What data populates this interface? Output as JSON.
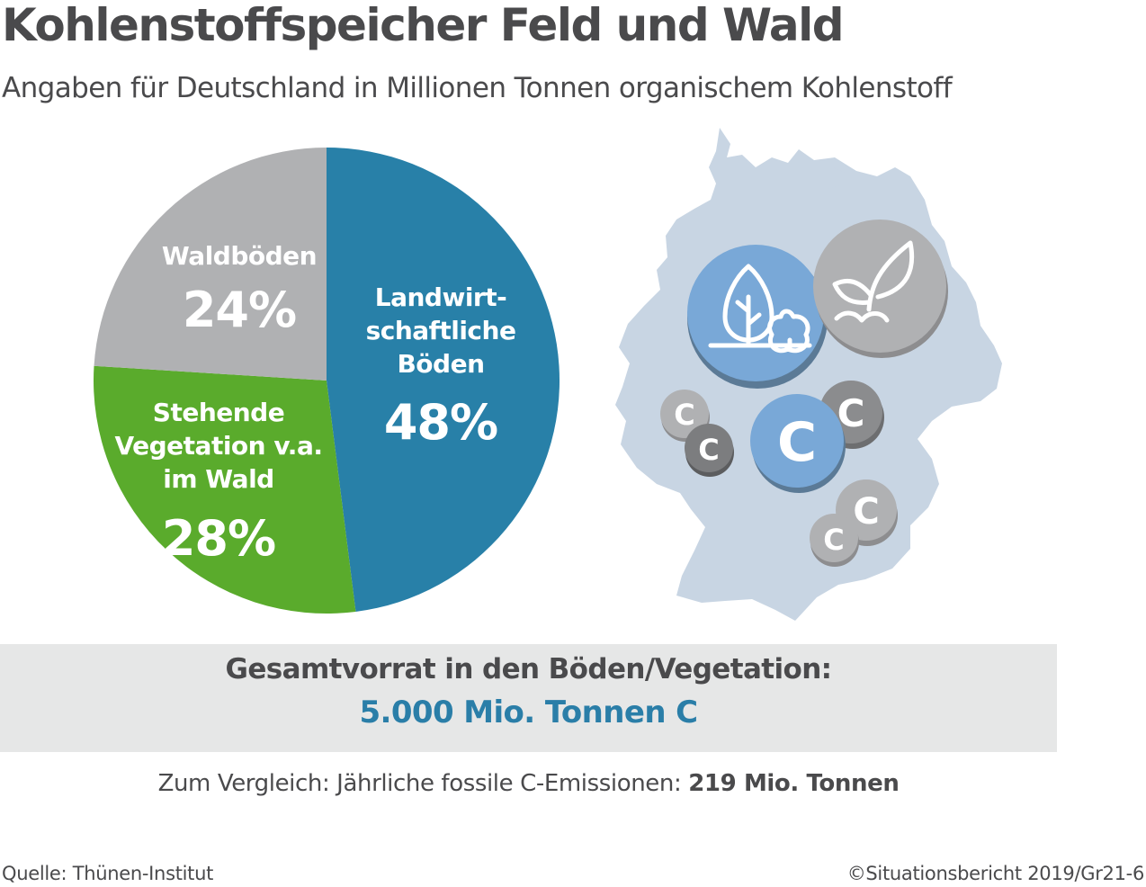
{
  "title": "Kohlenstoffspeicher Feld und Wald",
  "subtitle": "Angaben für Deutschland in Millionen Tonnen organischem Kohlenstoff",
  "chart_data": {
    "type": "pie",
    "title": "Kohlenstoffspeicher Feld und Wald",
    "subtitle": "Angaben für Deutschland in Millionen Tonnen organischem Kohlenstoff",
    "slices": [
      {
        "label_lines": [
          "Landwirt-",
          "schaftliche",
          "Böden"
        ],
        "value": 48,
        "pct_label": "48%",
        "color": "#2880a8"
      },
      {
        "label_lines": [
          "Stehende",
          "Vegetation v.a.",
          "im Wald"
        ],
        "value": 28,
        "pct_label": "28%",
        "color": "#5aab2c"
      },
      {
        "label_lines": [
          "Waldböden"
        ],
        "value": 24,
        "pct_label": "24%",
        "color": "#b0b1b3"
      }
    ],
    "start": "12 o'clock",
    "direction": "clockwise"
  },
  "map": {
    "land_color": "#c8d5e3",
    "icons": [
      "tree-icon",
      "seedling-icon"
    ],
    "carbon_symbol": "C"
  },
  "total": {
    "label": "Gesamtvorrat in den Böden/Vegetation:",
    "value": "5.000 Mio. Tonnen C"
  },
  "comparison": {
    "prefix": "Zum Vergleich: Jährliche fossile C-Emissionen: ",
    "value": "219 Mio. Tonnen"
  },
  "footer": {
    "source": "Quelle: Thünen-Institut",
    "copyright": "©Situationsbericht 2019/Gr21-6"
  }
}
